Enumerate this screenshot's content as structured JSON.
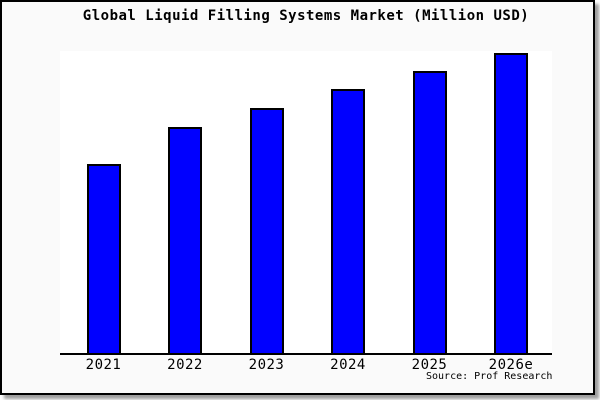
{
  "colors": {
    "bar_fill": "#0000ff",
    "bar_border": "#000000",
    "axis": "#000000",
    "frame_border": "#000000",
    "frame_background": "#fafafa",
    "plot_background": "#ffffff",
    "shadow": "#9e9e9e",
    "text": "#000000"
  },
  "chart_data": {
    "type": "bar",
    "title": "Global Liquid Filling Systems Market (Million USD)",
    "categories": [
      "2021",
      "2022",
      "2023",
      "2024",
      "2025",
      "2026e"
    ],
    "values": [
      63,
      75.3,
      81.7,
      88,
      94,
      100
    ],
    "values_note": "No numeric y-axis, gridlines or data labels are shown in the chart; values are bar heights expressed as percent of the tallest bar (2026e = 100)",
    "xlabel": "",
    "ylabel": "",
    "ylim": [
      0,
      100
    ],
    "grid": false,
    "legend": false,
    "y_axis_shown": false,
    "annotation": "Source: Prof Research"
  }
}
